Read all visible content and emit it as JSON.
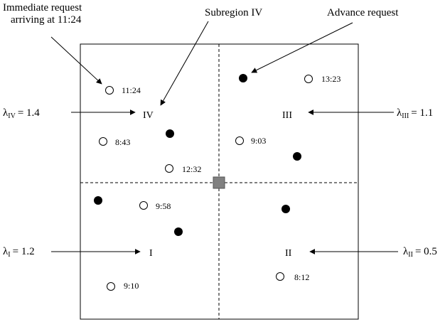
{
  "labels": {
    "immediate_line1": "Immediate request",
    "immediate_line2": "arriving at 11:24",
    "subregion": "Subregion IV",
    "advance": "Advance request"
  },
  "regions": {
    "I": "I",
    "II": "II",
    "III": "III",
    "IV": "IV"
  },
  "lambdas": {
    "IV": {
      "sym": "λ",
      "sub": "IV",
      "value": "= 1.4"
    },
    "III": {
      "sym": "λ",
      "sub": "III",
      "value": "= 1.1"
    },
    "I": {
      "sym": "λ",
      "sub": "I",
      "value": "= 1.2"
    },
    "II": {
      "sym": "λ",
      "sub": "II",
      "value": "= 0.5"
    }
  },
  "immediate_requests": [
    {
      "time": "11:24"
    },
    {
      "time": "13:23"
    },
    {
      "time": "8:43"
    },
    {
      "time": "9:03"
    },
    {
      "time": "12:32"
    },
    {
      "time": "9:58"
    },
    {
      "time": "8:12"
    },
    {
      "time": "9:10"
    }
  ],
  "advance_request_count": 6
}
